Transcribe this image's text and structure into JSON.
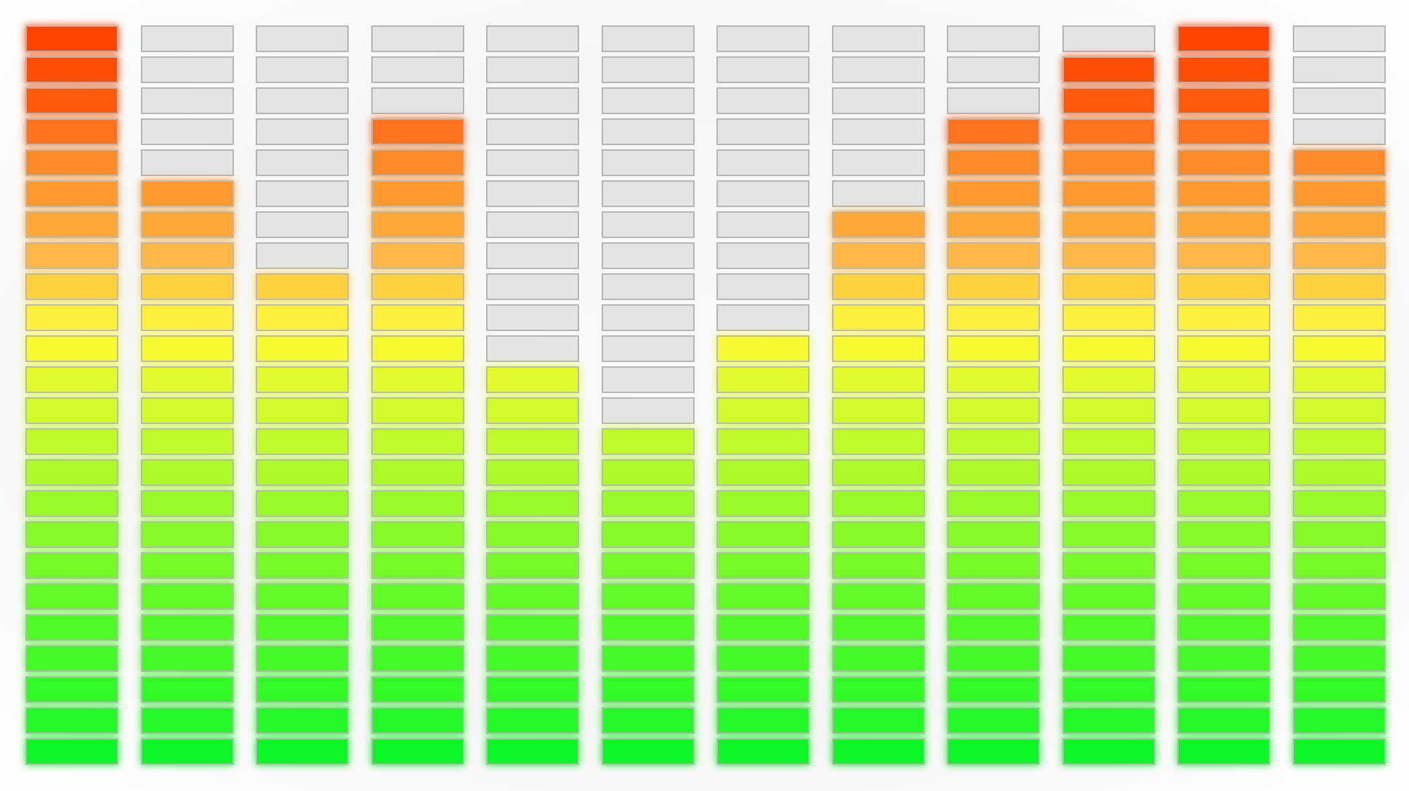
{
  "equalizer": {
    "segments_per_band": 24,
    "band_levels": [
      24,
      19,
      16,
      21,
      13,
      11,
      14,
      18,
      21,
      23,
      24,
      20
    ],
    "unlit_color": "#e4e4e4",
    "segment_colors_top_to_bottom": [
      "#ff4500",
      "#ff4e08",
      "#ff5a0e",
      "#ff7220",
      "#ff8a28",
      "#ff9a30",
      "#ffa838",
      "#ffb848",
      "#ffd040",
      "#fff040",
      "#f5fa32",
      "#e2fa2e",
      "#d2fa2c",
      "#c0fa2a",
      "#acfa28",
      "#98fa28",
      "#86fa28",
      "#76fa28",
      "#62fa28",
      "#52fa28",
      "#44fa28",
      "#34fa28",
      "#24fa28",
      "#0cf628"
    ]
  }
}
